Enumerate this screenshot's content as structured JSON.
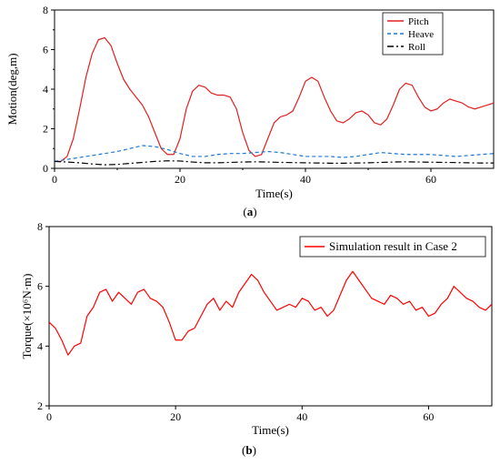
{
  "chart_data": [
    {
      "panel_label": "a",
      "type": "line",
      "xlabel": "Time(s)",
      "ylabel": "Motion(deg,m)",
      "xlim": [
        0,
        70
      ],
      "ylim": [
        0,
        8
      ],
      "xticks": [
        0,
        20,
        40,
        60
      ],
      "yticks": [
        0,
        2,
        4,
        6,
        8
      ],
      "legend_position": "top-right",
      "grid": false,
      "series": [
        {
          "name": "Pitch",
          "color": "#e02020",
          "dash": "solid",
          "x": [
            0,
            1,
            2,
            3,
            4,
            5,
            6,
            7,
            8,
            9,
            10,
            11,
            12,
            13,
            14,
            15,
            16,
            17,
            18,
            19,
            20,
            21,
            22,
            23,
            24,
            25,
            26,
            27,
            28,
            29,
            30,
            31,
            32,
            33,
            34,
            35,
            36,
            37,
            38,
            39,
            40,
            41,
            42,
            43,
            44,
            45,
            46,
            47,
            48,
            49,
            50,
            51,
            52,
            53,
            54,
            55,
            56,
            57,
            58,
            59,
            60,
            61,
            62,
            63,
            64,
            65,
            66,
            67,
            68,
            69,
            70
          ],
          "values": [
            0.35,
            0.35,
            0.6,
            1.5,
            3.0,
            4.6,
            5.8,
            6.5,
            6.6,
            6.2,
            5.3,
            4.5,
            4.0,
            3.6,
            3.2,
            2.6,
            1.8,
            1.0,
            0.7,
            0.7,
            1.5,
            3.0,
            3.9,
            4.2,
            4.1,
            3.8,
            3.7,
            3.7,
            3.6,
            3.0,
            1.8,
            0.9,
            0.6,
            0.7,
            1.5,
            2.3,
            2.6,
            2.7,
            2.9,
            3.6,
            4.4,
            4.6,
            4.4,
            3.6,
            2.9,
            2.4,
            2.3,
            2.5,
            2.8,
            2.9,
            2.7,
            2.3,
            2.2,
            2.5,
            3.2,
            4.0,
            4.3,
            4.2,
            3.6,
            3.1,
            2.9,
            3.0,
            3.3,
            3.5,
            3.4,
            3.3,
            3.1,
            3.0,
            3.1,
            3.2,
            3.3
          ]
        },
        {
          "name": "Heave",
          "color": "#1f77d4",
          "dash": "dashed",
          "x": [
            0,
            2,
            4,
            6,
            8,
            10,
            12,
            14,
            16,
            18,
            20,
            22,
            24,
            26,
            28,
            30,
            32,
            34,
            36,
            38,
            40,
            42,
            44,
            46,
            48,
            50,
            52,
            54,
            56,
            58,
            60,
            62,
            64,
            66,
            68,
            70
          ],
          "values": [
            0.35,
            0.45,
            0.55,
            0.65,
            0.75,
            0.85,
            1.0,
            1.15,
            1.1,
            0.95,
            0.75,
            0.6,
            0.6,
            0.7,
            0.75,
            0.75,
            0.8,
            0.85,
            0.8,
            0.7,
            0.6,
            0.6,
            0.6,
            0.55,
            0.6,
            0.7,
            0.8,
            0.75,
            0.7,
            0.7,
            0.7,
            0.65,
            0.6,
            0.65,
            0.7,
            0.75
          ]
        },
        {
          "name": "Roll",
          "color": "#000000",
          "dash": "dashdot",
          "x": [
            0,
            2,
            4,
            6,
            8,
            10,
            12,
            14,
            16,
            18,
            20,
            22,
            24,
            26,
            28,
            30,
            32,
            34,
            36,
            38,
            40,
            42,
            44,
            46,
            48,
            50,
            52,
            54,
            56,
            58,
            60,
            62,
            64,
            66,
            68,
            70
          ],
          "values": [
            0.35,
            0.32,
            0.28,
            0.22,
            0.18,
            0.2,
            0.25,
            0.3,
            0.35,
            0.38,
            0.37,
            0.32,
            0.28,
            0.28,
            0.3,
            0.32,
            0.33,
            0.32,
            0.3,
            0.29,
            0.28,
            0.27,
            0.26,
            0.26,
            0.27,
            0.28,
            0.3,
            0.32,
            0.33,
            0.32,
            0.31,
            0.3,
            0.29,
            0.28,
            0.27,
            0.27
          ]
        }
      ]
    },
    {
      "panel_label": "b",
      "type": "line",
      "xlabel": "Time(s)",
      "ylabel": "Torque(×10⁶N·m)",
      "xlim": [
        0,
        70
      ],
      "ylim": [
        2,
        8
      ],
      "xticks": [
        0,
        20,
        40,
        60
      ],
      "yticks": [
        2,
        4,
        6,
        8
      ],
      "legend_position": "top-right",
      "grid": false,
      "series": [
        {
          "name": "Simulation result in Case 2",
          "color": "#ff0000",
          "dash": "solid",
          "x": [
            0,
            1,
            2,
            3,
            4,
            5,
            6,
            7,
            8,
            9,
            10,
            11,
            12,
            13,
            14,
            15,
            16,
            17,
            18,
            19,
            20,
            21,
            22,
            23,
            24,
            25,
            26,
            27,
            28,
            29,
            30,
            31,
            32,
            33,
            34,
            35,
            36,
            37,
            38,
            39,
            40,
            41,
            42,
            43,
            44,
            45,
            46,
            47,
            48,
            49,
            50,
            51,
            52,
            53,
            54,
            55,
            56,
            57,
            58,
            59,
            60,
            61,
            62,
            63,
            64,
            65,
            66,
            67,
            68,
            69,
            70
          ],
          "values": [
            4.8,
            4.6,
            4.2,
            3.7,
            4.0,
            4.1,
            5.0,
            5.3,
            5.8,
            5.9,
            5.5,
            5.8,
            5.6,
            5.4,
            5.8,
            5.9,
            5.6,
            5.5,
            5.3,
            4.8,
            4.2,
            4.2,
            4.5,
            4.6,
            5.0,
            5.4,
            5.6,
            5.2,
            5.5,
            5.3,
            5.8,
            6.1,
            6.4,
            6.2,
            5.8,
            5.5,
            5.2,
            5.3,
            5.4,
            5.3,
            5.6,
            5.5,
            5.2,
            5.3,
            5.0,
            5.2,
            5.7,
            6.2,
            6.5,
            6.2,
            5.9,
            5.6,
            5.5,
            5.4,
            5.7,
            5.6,
            5.4,
            5.5,
            5.2,
            5.3,
            5.0,
            5.1,
            5.4,
            5.6,
            6.0,
            5.8,
            5.6,
            5.5,
            5.3,
            5.2,
            5.4
          ]
        }
      ]
    }
  ]
}
